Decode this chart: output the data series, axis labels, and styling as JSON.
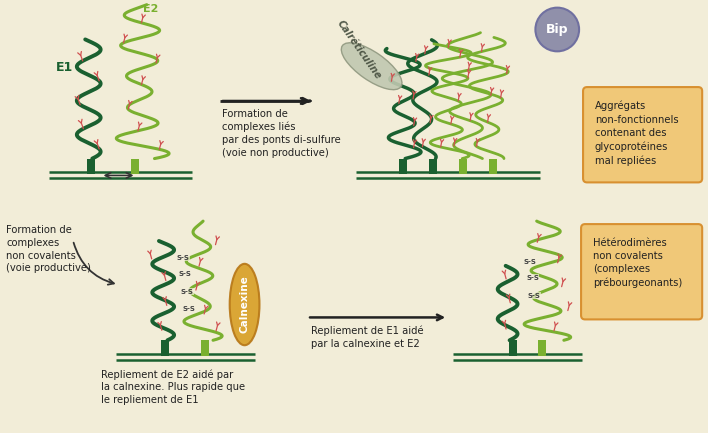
{
  "bg_color": "#f2edd8",
  "dark_green": "#1a6030",
  "light_green": "#7ab030",
  "mid_green": "#5a9020",
  "light_green2": "#a0c848",
  "membrane_color": "#1a3820",
  "pink_marker": "#d05050",
  "orange_box": "#f0c878",
  "orange_box_border": "#d89030",
  "calreticulin_color": "#b8c4a8",
  "bip_color": "#9090aa",
  "calnexin_color": "#d8a028",
  "labels": {
    "E1": "E1",
    "E2": "E2",
    "formation_top": "Formation de\ncomplexes liés\npar des ponts di-sulfure\n(voie non productive)",
    "aggregats": "Aggrégats\nnon-fonctionnels\ncontenant des\nglycoprotéines\nmal repliées",
    "formation_bottom": "Formation de\ncomplexes\nnon covalents\n(voie productive)",
    "repliement_e2": "Repliement de E2 aidé par\nla calnexine. Plus rapide que\nle repliement de E1",
    "repliement_e1": "Repliement de E1 aidé\npar la calnexine et E2",
    "heterodimeres": "Hétérodimères\nnon covalents\n(complexes\nprébourgeonants)",
    "calreticuline": "Calréticuline",
    "bip": "Bip",
    "calnexine": "Calnexine"
  }
}
